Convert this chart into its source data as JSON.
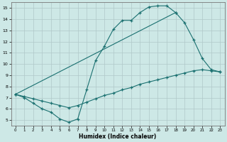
{
  "xlabel": "Humidex (Indice chaleur)",
  "xlim": [
    -0.5,
    23.5
  ],
  "ylim": [
    4.5,
    15.5
  ],
  "xticks": [
    0,
    1,
    2,
    3,
    4,
    5,
    6,
    7,
    8,
    9,
    10,
    11,
    12,
    13,
    14,
    15,
    16,
    17,
    18,
    19,
    20,
    21,
    22,
    23
  ],
  "yticks": [
    5,
    6,
    7,
    8,
    9,
    10,
    11,
    12,
    13,
    14,
    15
  ],
  "bg_color": "#cde8e6",
  "grid_color": "#b0c8c8",
  "line_color": "#1a7070",
  "line1_x": [
    0,
    1,
    2,
    3,
    4,
    5,
    6,
    7,
    8,
    9,
    10,
    11,
    12,
    13,
    14,
    15,
    16,
    17,
    18
  ],
  "line1_y": [
    7.3,
    7.0,
    6.5,
    6.0,
    5.7,
    5.1,
    4.8,
    5.1,
    7.7,
    10.3,
    11.6,
    13.1,
    13.9,
    13.9,
    14.6,
    15.1,
    15.2,
    15.2,
    14.6
  ],
  "line2_x": [
    0,
    1,
    2,
    3,
    4,
    5,
    6,
    7,
    8,
    9,
    10,
    11,
    12,
    13,
    14,
    15,
    16,
    17,
    18,
    19,
    20,
    21,
    22,
    23
  ],
  "line2_y": [
    7.3,
    7.1,
    6.9,
    6.7,
    6.5,
    6.3,
    6.1,
    6.3,
    6.6,
    6.9,
    7.2,
    7.4,
    7.7,
    7.9,
    8.2,
    8.4,
    8.6,
    8.8,
    9.0,
    9.2,
    9.4,
    9.5,
    9.4,
    9.3
  ],
  "line3_x": [
    0,
    18,
    19,
    20,
    21,
    22,
    23
  ],
  "line3_y": [
    7.3,
    14.6,
    13.7,
    12.2,
    10.5,
    9.5,
    9.3
  ]
}
